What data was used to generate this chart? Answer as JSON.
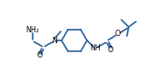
{
  "bg_color": "#ffffff",
  "line_color": "#2a6099",
  "line_width": 1.2,
  "font_size": 5.8,
  "fig_width": 1.6,
  "fig_height": 0.89,
  "dpi": 100,
  "xlim": [
    0,
    160
  ],
  "ylim": [
    0,
    89
  ]
}
